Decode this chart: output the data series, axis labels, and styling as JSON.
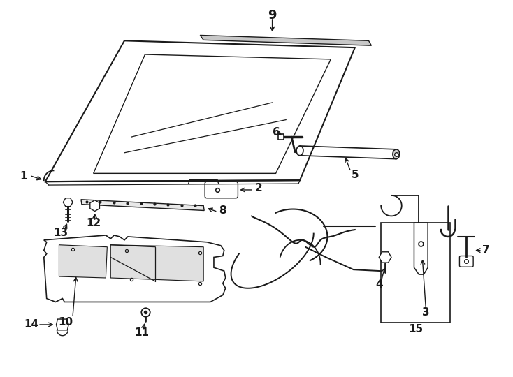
{
  "background_color": "#ffffff",
  "line_color": "#1a1a1a",
  "figsize": [
    7.34,
    5.4
  ],
  "dpi": 100
}
